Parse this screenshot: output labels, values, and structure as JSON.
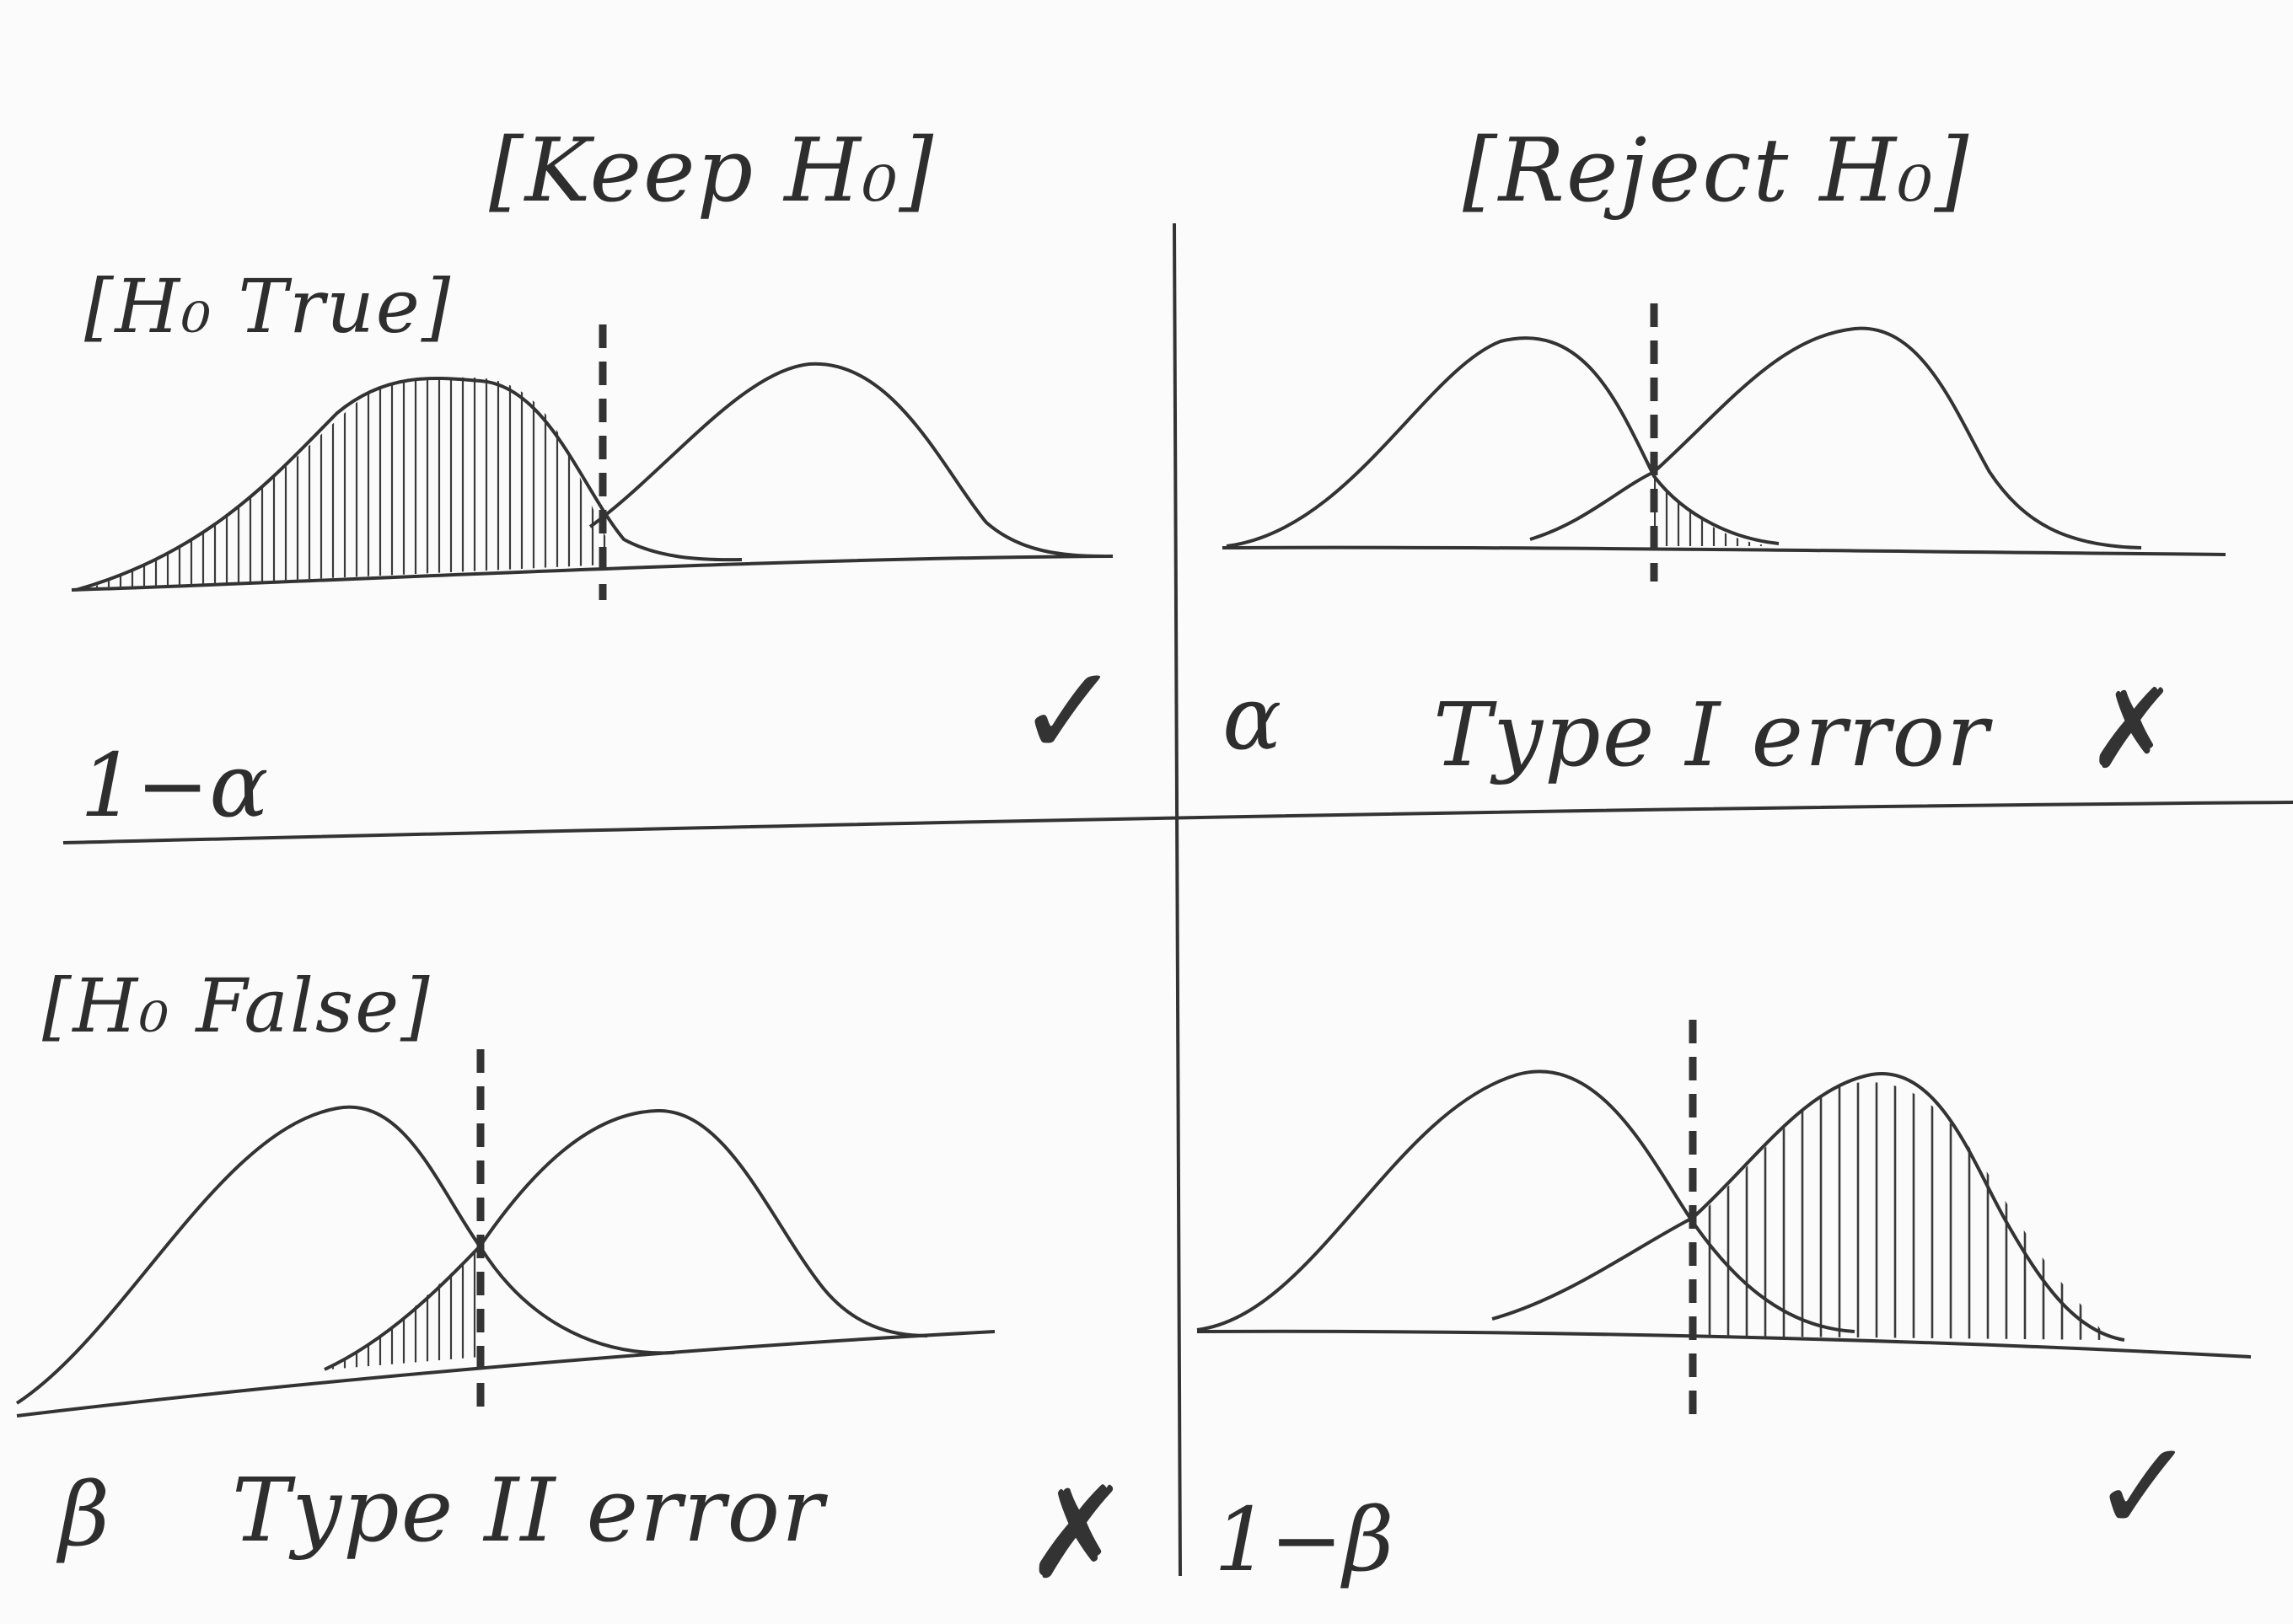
{
  "columns": {
    "keep": "[Keep H₀]",
    "reject": "[Reject H₀]"
  },
  "rows": {
    "true": "[H₀ True]",
    "false": "[H₀ False]"
  },
  "cells": {
    "top_left": {
      "value_label": "1−α",
      "mark": "✓"
    },
    "top_right": {
      "value_label": "α",
      "error_label": "Type I error",
      "mark": "✗"
    },
    "bottom_left": {
      "value_label": "β",
      "error_label": "Type II error",
      "mark": "✗"
    },
    "bottom_right": {
      "value_label": "1−β",
      "mark": "✓"
    }
  },
  "colors": {
    "ink": "#2e2e2e",
    "paper": "#fbfbfb"
  }
}
